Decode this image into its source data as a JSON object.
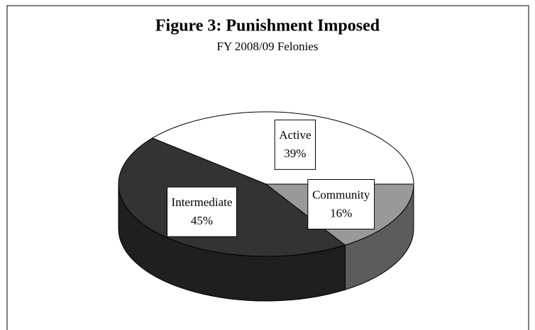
{
  "chart_data": {
    "type": "pie3d",
    "title": "Figure 3:  Punishment Imposed",
    "subtitle": "FY 2008/09 Felonies",
    "categories": [
      "Active",
      "Intermediate",
      "Community"
    ],
    "values": [
      39,
      45,
      16
    ],
    "value_labels": [
      "39%",
      "45%",
      "16%"
    ],
    "colors": [
      "#ffffff",
      "#333333",
      "#999999"
    ]
  }
}
